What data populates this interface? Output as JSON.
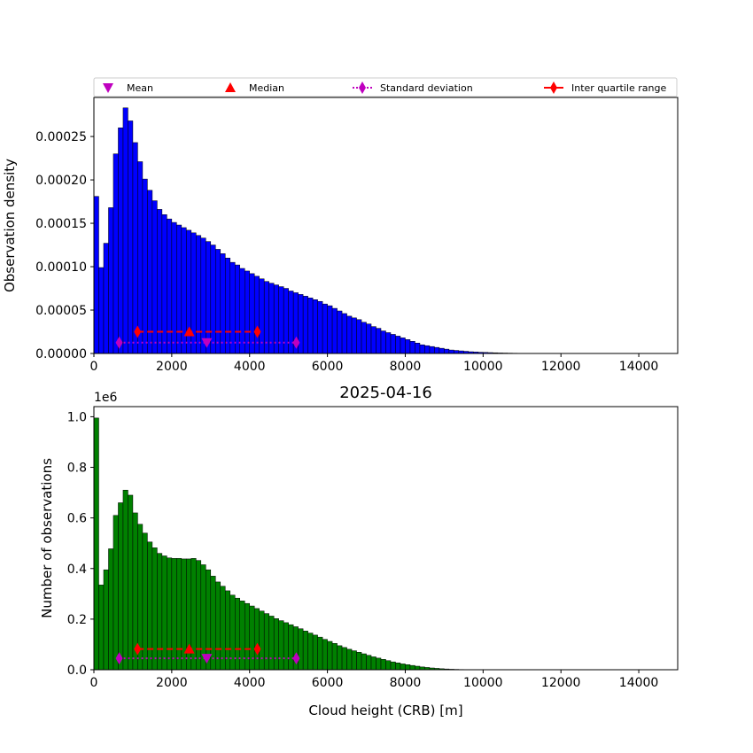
{
  "legend": {
    "placement": "top",
    "entries": [
      {
        "label": "Mean",
        "marker": "triangle-down",
        "color": "#bf00bf",
        "line": "none"
      },
      {
        "label": "Median",
        "marker": "triangle-up",
        "color": "#ff0000",
        "line": "none"
      },
      {
        "label": "Standard deviation",
        "marker": "thin-diamond",
        "color": "#bf00bf",
        "line": "dotted"
      },
      {
        "label": "Inter quartile range",
        "marker": "thin-diamond",
        "color": "#ff0000",
        "line": "solid"
      }
    ]
  },
  "chart_data": [
    {
      "type": "bar",
      "ylabel": "Observation density",
      "xlabel": "",
      "title": "",
      "xlim": [
        0,
        15000
      ],
      "ylim": [
        0,
        0.000295
      ],
      "xticks": [
        0,
        2000,
        4000,
        6000,
        8000,
        10000,
        12000,
        14000
      ],
      "yticks": [
        0.0,
        5e-05,
        0.0001,
        0.00015,
        0.0002,
        0.00025
      ],
      "ytick_labels": [
        "0.00000",
        "0.00005",
        "0.00010",
        "0.00015",
        "0.00020",
        "0.00025"
      ],
      "bar_color": "#0000ff",
      "bin_width": 125,
      "values": [
        0.000181,
        9.9e-05,
        0.000127,
        0.000168,
        0.00023,
        0.00026,
        0.000283,
        0.000268,
        0.000243,
        0.000221,
        0.000201,
        0.000188,
        0.000176,
        0.000166,
        0.00016,
        0.000155,
        0.000151,
        0.000148,
        0.000145,
        0.000142,
        0.000139,
        0.000136,
        0.000133,
        0.000129,
        0.000125,
        0.00012,
        0.000115,
        0.00011,
        0.000105,
        0.000102,
        9.8e-05,
        9.5e-05,
        9.2e-05,
        8.9e-05,
        8.6e-05,
        8.3e-05,
        8.1e-05,
        7.9e-05,
        7.7e-05,
        7.5e-05,
        7.2e-05,
        7e-05,
        6.8e-05,
        6.6e-05,
        6.4e-05,
        6.2e-05,
        6e-05,
        5.7e-05,
        5.5e-05,
        5.2e-05,
        4.9e-05,
        4.6e-05,
        4.3e-05,
        4.1e-05,
        3.9e-05,
        3.6e-05,
        3.4e-05,
        3.1e-05,
        2.9e-05,
        2.6e-05,
        2.4e-05,
        2.2e-05,
        2e-05,
        1.8e-05,
        1.6e-05,
        1.4e-05,
        1.2e-05,
        1e-05,
        9e-06,
        8e-06,
        7e-06,
        6e-06,
        5e-06,
        4e-06,
        3.5e-06,
        3e-06,
        2.5e-06,
        2e-06,
        1.7e-06,
        1.4e-06,
        1.2e-06,
        1e-06,
        8e-07,
        6e-07,
        5e-07,
        4e-07,
        3e-07,
        2e-07,
        2e-07,
        1e-07,
        1e-07,
        1e-07,
        1e-07,
        1e-07,
        1e-07,
        1e-07
      ],
      "stats": {
        "level_mean_std": 1.25e-05,
        "level_median_iqr": 2.5e-05,
        "mean": 2900,
        "std": [
          650,
          5200
        ],
        "median": 2450,
        "iqr": [
          1120,
          4200
        ]
      }
    },
    {
      "type": "bar",
      "title": "2025-04-16",
      "ylabel": "Number of observations",
      "xlabel": "Cloud height (CRB) [m]",
      "y_offset_label": "1e6",
      "xlim": [
        0,
        15000
      ],
      "ylim": [
        0,
        1040000
      ],
      "xticks": [
        0,
        2000,
        4000,
        6000,
        8000,
        10000,
        12000,
        14000
      ],
      "yticks": [
        0,
        200000,
        400000,
        600000,
        800000,
        1000000
      ],
      "ytick_labels": [
        "0.0",
        "0.2",
        "0.4",
        "0.6",
        "0.8",
        "1.0"
      ],
      "bar_color": "#008000",
      "bin_width": 125,
      "values": [
        995000,
        335000,
        395000,
        478000,
        610000,
        660000,
        710000,
        690000,
        620000,
        575000,
        540000,
        505000,
        482000,
        460000,
        450000,
        442000,
        440000,
        440000,
        438000,
        438000,
        440000,
        432000,
        415000,
        395000,
        370000,
        347000,
        330000,
        312000,
        295000,
        283000,
        272000,
        262000,
        252000,
        242000,
        232000,
        222000,
        212000,
        202000,
        194000,
        186000,
        178000,
        170000,
        162000,
        153000,
        145000,
        137000,
        129000,
        120000,
        112000,
        104000,
        95000,
        88000,
        81000,
        75000,
        69000,
        63000,
        57000,
        51000,
        46000,
        41000,
        36000,
        31000,
        27000,
        23000,
        20000,
        17000,
        14000,
        11000,
        9000,
        7000,
        5500,
        4000,
        3000,
        2000,
        1500,
        1000,
        800,
        600,
        400,
        300,
        200,
        150,
        100,
        100,
        80,
        60,
        50,
        40,
        30,
        20,
        20,
        10,
        10,
        10,
        10,
        10
      ],
      "stats": {
        "level_mean_std": 45000,
        "level_median_iqr": 82000,
        "mean": 2900,
        "std": [
          650,
          5200
        ],
        "median": 2450,
        "iqr": [
          1120,
          4200
        ]
      }
    }
  ]
}
